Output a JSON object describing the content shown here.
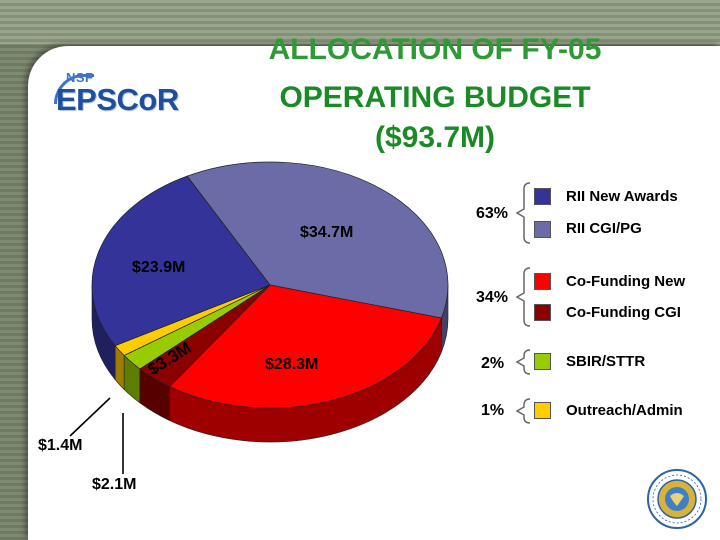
{
  "title": {
    "line1": "ALLOCATION OF FY-05",
    "line2": "OPERATING BUDGET",
    "line3": "($93.7M)"
  },
  "logo": {
    "small": "NSF",
    "brand": "EPSCoR"
  },
  "chart_data": {
    "type": "pie",
    "title": "ALLOCATION OF FY-05 OPERATING BUDGET ($93.7M)",
    "slices": [
      {
        "name": "RII CGI/PG",
        "value": 34.7,
        "label": "$34.7M",
        "color": "#6b6ba8"
      },
      {
        "name": "Co-Funding New",
        "value": 28.3,
        "label": "$28.3M",
        "color": "#ff0000"
      },
      {
        "name": "Co-Funding CGI",
        "value": 3.3,
        "label": "$3.3M",
        "color": "#8b0000"
      },
      {
        "name": "SBIR/STTR",
        "value": 2.1,
        "label": "$2.1M",
        "color": "#99cc00"
      },
      {
        "name": "Outreach/Admin",
        "value": 1.4,
        "label": "$1.4M",
        "color": "#ffcc00"
      },
      {
        "name": "RII New Awards",
        "value": 23.9,
        "label": "$23.9M",
        "color": "#333399"
      }
    ],
    "legend": {
      "placement": "right",
      "groups": [
        {
          "percent": "63%",
          "items": [
            "RII New Awards",
            "RII CGI/PG"
          ]
        },
        {
          "percent": "34%",
          "items": [
            "Co-Funding New",
            "Co-Funding CGI"
          ]
        },
        {
          "percent": "2%",
          "items": [
            "SBIR/STTR"
          ]
        },
        {
          "percent": "1%",
          "items": [
            "Outreach/Admin"
          ]
        }
      ]
    }
  }
}
